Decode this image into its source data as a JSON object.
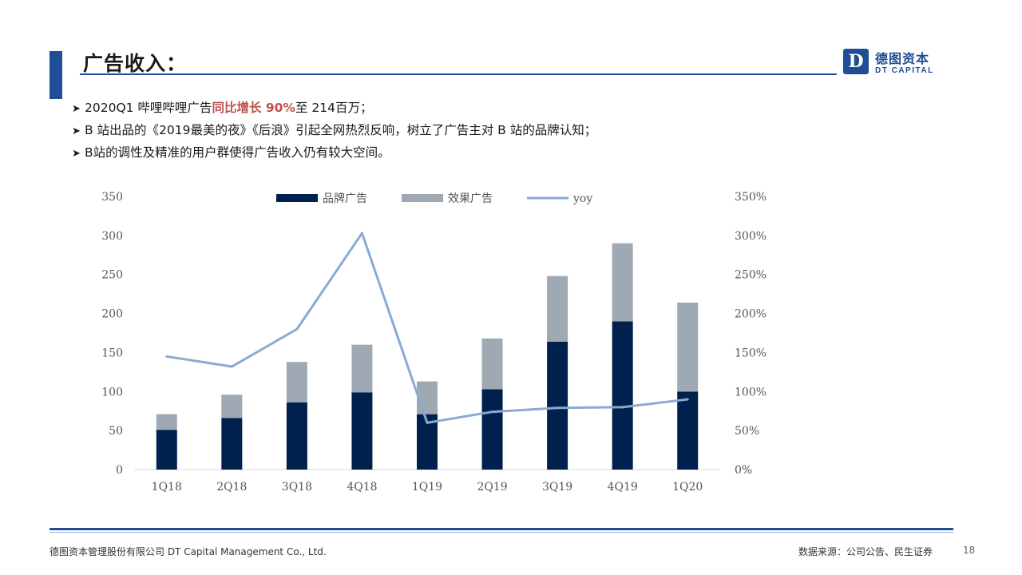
{
  "header": {
    "title": "广告收入：",
    "logo": {
      "mark": "D",
      "name_cn": "德图资本",
      "name_en": "DT CAPITAL",
      "color": "#1f4e96"
    }
  },
  "bullets": [
    {
      "pre": "2020Q1 哔哩哔哩广告",
      "highlight": "同比增长 90%",
      "post": "至 214百万；"
    },
    {
      "pre": "B 站出品的《2019最美的夜》《后浪》引起全网热烈反响，树立了广告主对 B 站的品牌认知；",
      "highlight": "",
      "post": ""
    },
    {
      "pre": "B站的调性及精准的用户群使得广告收入仍有较大空间。",
      "highlight": "",
      "post": ""
    }
  ],
  "chart_data": {
    "type": "bar",
    "stacked": true,
    "categories": [
      "1Q18",
      "2Q18",
      "3Q18",
      "4Q18",
      "1Q19",
      "2Q19",
      "3Q19",
      "4Q19",
      "1Q20"
    ],
    "series": [
      {
        "name": "品牌广告",
        "type": "bar",
        "axis": "left",
        "color": "#00204e",
        "values": [
          51,
          66,
          86,
          99,
          71,
          103,
          164,
          190,
          100
        ]
      },
      {
        "name": "效果广告",
        "type": "bar",
        "axis": "left",
        "color": "#9ea9b3",
        "values": [
          20,
          30,
          52,
          61,
          42,
          65,
          84,
          100,
          114
        ]
      },
      {
        "name": "yoy",
        "type": "line",
        "axis": "right",
        "color": "#8aaad2",
        "values": [
          1.45,
          1.32,
          1.8,
          3.03,
          0.6,
          0.74,
          0.79,
          0.8,
          0.9
        ]
      }
    ],
    "y_left": {
      "min": 0,
      "max": 350,
      "ticks": [
        "350",
        "300",
        "250",
        "200",
        "150",
        "100",
        "50",
        "0"
      ]
    },
    "y_right": {
      "min": 0,
      "max": 3.5,
      "ticks": [
        "350%",
        "300%",
        "250%",
        "200%",
        "150%",
        "100%",
        "50%",
        "0%"
      ]
    },
    "legend_position": "top-center",
    "grid": false
  },
  "footer": {
    "company": "德图资本管理股份有限公司  DT Capital  Management  Co., Ltd.",
    "source": "数据来源：公司公告、民生证券",
    "page": "18"
  }
}
